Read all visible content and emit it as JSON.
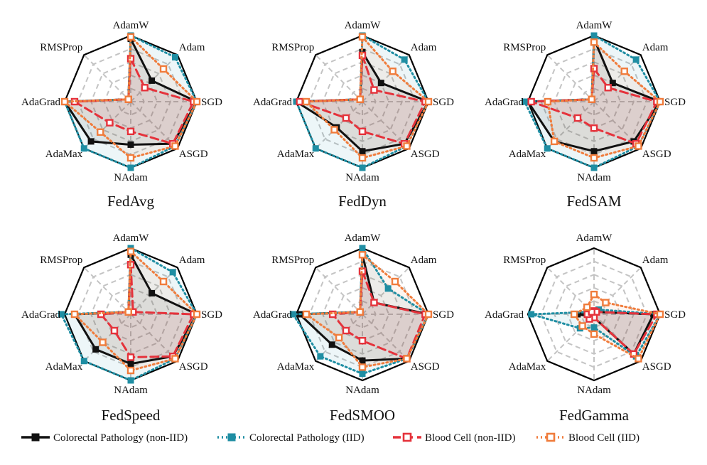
{
  "chart_data": {
    "type": "radar",
    "axes": [
      "AdamW",
      "Adam",
      "SGD",
      "ASGD",
      "NAdam",
      "AdaMax",
      "AdaGrad",
      "RMSProp"
    ],
    "rlim": [
      0,
      1
    ],
    "grid_levels": [
      0.2,
      0.4,
      0.6,
      0.8
    ],
    "legend_position": "bottom",
    "series_styles": [
      {
        "name": "Colorectal Pathology (non-IID)",
        "color": "#111111",
        "dash": "solid",
        "marker": "filled-square"
      },
      {
        "name": "Colorectal Pathology (IID)",
        "color": "#1f8ea3",
        "dash": "dotted",
        "marker": "filled-square"
      },
      {
        "name": "Blood Cell (non-IID)",
        "color": "#e5323b",
        "dash": "dashed",
        "marker": "hollow-square"
      },
      {
        "name": "Blood Cell (IID)",
        "color": "#f07c3c",
        "dash": "dotted",
        "marker": "hollow-square"
      }
    ],
    "charts": [
      {
        "title": "FedAvg",
        "series": [
          {
            "name": "Colorectal Pathology (non-IID)",
            "values": [
              0.95,
              0.45,
              1.0,
              0.9,
              0.65,
              0.85,
              1.0,
              0.05
            ]
          },
          {
            "name": "Colorectal Pathology (IID)",
            "values": [
              1.0,
              0.95,
              1.0,
              0.95,
              1.0,
              1.0,
              1.0,
              0.05
            ]
          },
          {
            "name": "Blood Cell (non-IID)",
            "values": [
              0.65,
              0.3,
              0.95,
              0.9,
              0.45,
              0.45,
              0.85,
              0.05
            ]
          },
          {
            "name": "Blood Cell (IID)",
            "values": [
              0.98,
              0.7,
              1.0,
              0.95,
              0.85,
              0.65,
              1.0,
              0.05
            ]
          }
        ]
      },
      {
        "title": "FedDyn",
        "series": [
          {
            "name": "Colorectal Pathology (non-IID)",
            "values": [
              0.75,
              0.4,
              1.0,
              0.9,
              0.75,
              0.55,
              1.0,
              0.05
            ]
          },
          {
            "name": "Colorectal Pathology (IID)",
            "values": [
              1.0,
              0.9,
              1.0,
              0.95,
              1.0,
              1.0,
              1.0,
              0.05
            ]
          },
          {
            "name": "Blood Cell (non-IID)",
            "values": [
              0.7,
              0.25,
              0.95,
              0.9,
              0.45,
              0.35,
              0.95,
              0.05
            ]
          },
          {
            "name": "Blood Cell (IID)",
            "values": [
              0.98,
              0.65,
              1.0,
              0.95,
              0.85,
              0.6,
              0.85,
              0.05
            ]
          }
        ]
      },
      {
        "title": "FedSAM",
        "series": [
          {
            "name": "Colorectal Pathology (non-IID)",
            "values": [
              0.95,
              0.4,
              1.0,
              0.85,
              0.75,
              0.85,
              1.0,
              0.05
            ]
          },
          {
            "name": "Colorectal Pathology (IID)",
            "values": [
              1.0,
              0.9,
              1.0,
              0.95,
              1.0,
              1.0,
              1.05,
              0.05
            ]
          },
          {
            "name": "Blood Cell (non-IID)",
            "values": [
              0.5,
              0.3,
              0.95,
              0.9,
              0.4,
              0.35,
              0.95,
              0.05
            ]
          },
          {
            "name": "Blood Cell (IID)",
            "values": [
              0.9,
              0.65,
              1.0,
              0.95,
              0.85,
              0.85,
              0.7,
              0.05
            ]
          }
        ]
      },
      {
        "title": "FedSpeed",
        "series": [
          {
            "name": "Colorectal Pathology (non-IID)",
            "values": [
              0.9,
              0.45,
              1.0,
              0.9,
              0.75,
              0.75,
              0.85,
              0.05
            ]
          },
          {
            "name": "Colorectal Pathology (IID)",
            "values": [
              1.0,
              0.9,
              1.0,
              0.95,
              1.0,
              1.0,
              1.05,
              0.05
            ]
          },
          {
            "name": "Blood Cell (non-IID)",
            "values": [
              0.75,
              0.05,
              0.95,
              0.9,
              0.65,
              0.35,
              0.45,
              0.05
            ]
          },
          {
            "name": "Blood Cell (IID)",
            "values": [
              0.95,
              0.7,
              1.0,
              0.95,
              0.85,
              0.6,
              0.85,
              0.05
            ]
          }
        ]
      },
      {
        "title": "FedSMOO",
        "series": [
          {
            "name": "Colorectal Pathology (non-IID)",
            "values": [
              0.9,
              0.25,
              1.0,
              0.95,
              0.7,
              0.65,
              0.95,
              0.05
            ]
          },
          {
            "name": "Colorectal Pathology (IID)",
            "values": [
              1.0,
              0.55,
              1.0,
              0.95,
              0.9,
              0.9,
              1.05,
              0.05
            ]
          },
          {
            "name": "Blood Cell (non-IID)",
            "values": [
              0.65,
              0.25,
              0.95,
              0.95,
              0.4,
              0.35,
              0.45,
              0.05
            ]
          },
          {
            "name": "Blood Cell (IID)",
            "values": [
              0.9,
              0.7,
              1.0,
              0.95,
              0.8,
              0.5,
              0.85,
              0.05
            ]
          }
        ]
      },
      {
        "title": "FedGamma",
        "series": [
          {
            "name": "Colorectal Pathology (non-IID)",
            "values": [
              0.05,
              0.05,
              0.9,
              0.85,
              0.05,
              0.05,
              0.25,
              0.05
            ]
          },
          {
            "name": "Colorectal Pathology (IID)",
            "values": [
              0.05,
              0.1,
              1.0,
              0.9,
              0.2,
              0.3,
              0.95,
              0.05
            ]
          },
          {
            "name": "Blood Cell (non-IID)",
            "values": [
              0.05,
              0.05,
              0.95,
              0.85,
              0.05,
              0.1,
              0.1,
              0.05
            ]
          },
          {
            "name": "Blood Cell (IID)",
            "values": [
              0.3,
              0.25,
              1.0,
              0.95,
              0.3,
              0.25,
              0.3,
              0.15
            ]
          }
        ]
      }
    ]
  }
}
